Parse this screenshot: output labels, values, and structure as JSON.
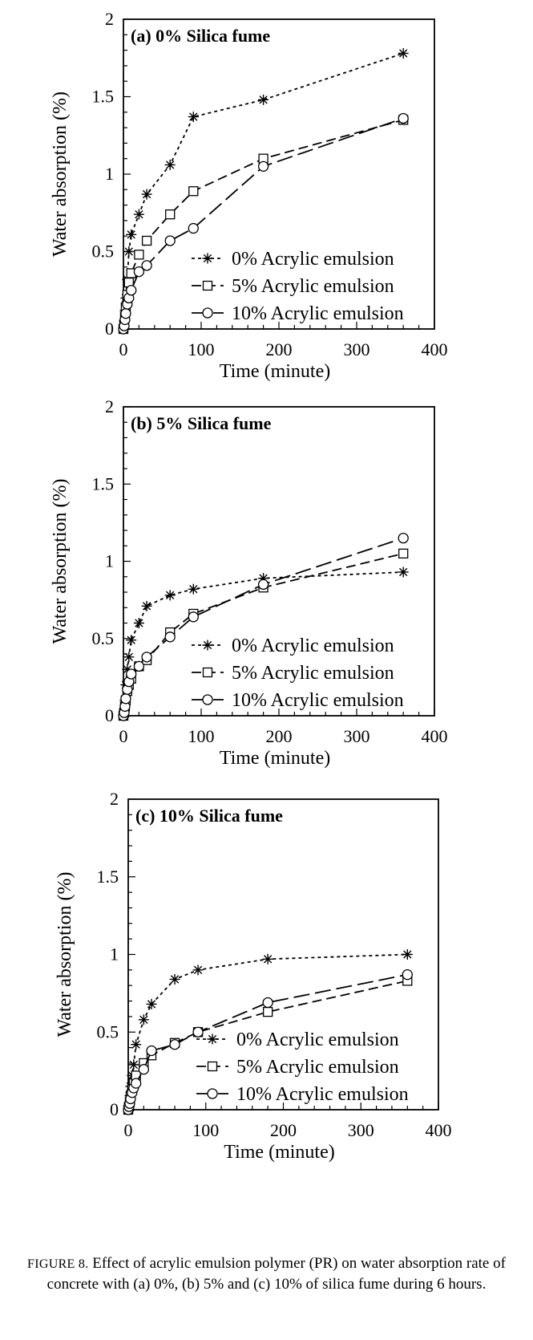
{
  "chart_data": [
    {
      "type": "line",
      "title": "(a) 0% Silica fume",
      "xlabel": "Time (minute)",
      "ylabel": "Water absorption (%)",
      "xlim": [
        0,
        400
      ],
      "ylim": [
        0,
        2
      ],
      "xticks": [
        "0",
        "100",
        "200",
        "300",
        "400"
      ],
      "yticks": [
        "0",
        "0.5",
        "1",
        "1.5",
        "2"
      ],
      "grid": false,
      "legend_position": "bottom-right",
      "series": [
        {
          "name": "0% Acrylic emulsion",
          "marker": "asterisk",
          "dash": "dotted",
          "x": [
            0,
            1,
            2,
            3,
            5,
            7,
            10,
            20,
            30,
            60,
            90,
            180,
            360
          ],
          "y": [
            0,
            0.05,
            0.12,
            0.2,
            0.32,
            0.5,
            0.61,
            0.74,
            0.87,
            1.06,
            1.37,
            1.48,
            1.78
          ]
        },
        {
          "name": "5% Acrylic emulsion",
          "marker": "square",
          "dash": "dashed",
          "x": [
            0,
            1,
            2,
            3,
            5,
            7,
            10,
            20,
            30,
            60,
            90,
            180,
            360
          ],
          "y": [
            0,
            0.03,
            0.08,
            0.14,
            0.22,
            0.3,
            0.36,
            0.48,
            0.57,
            0.74,
            0.89,
            1.1,
            1.35
          ]
        },
        {
          "name": "10% Acrylic emulsion",
          "marker": "circle",
          "dash": "longdash",
          "x": [
            0,
            1,
            2,
            3,
            5,
            7,
            10,
            20,
            30,
            60,
            90,
            180,
            360
          ],
          "y": [
            0,
            0.02,
            0.06,
            0.1,
            0.16,
            0.2,
            0.25,
            0.37,
            0.41,
            0.57,
            0.65,
            1.05,
            1.36
          ]
        }
      ]
    },
    {
      "type": "line",
      "title": "(b) 5% Silica fume",
      "xlabel": "Time (minute)",
      "ylabel": "Water absorption (%)",
      "xlim": [
        0,
        400
      ],
      "ylim": [
        0,
        2
      ],
      "xticks": [
        "0",
        "100",
        "200",
        "300",
        "400"
      ],
      "yticks": [
        "0",
        "0.5",
        "1",
        "1.5",
        "2"
      ],
      "grid": false,
      "legend_position": "bottom-right",
      "series": [
        {
          "name": "0% Acrylic emulsion",
          "marker": "asterisk",
          "dash": "dotted",
          "x": [
            0,
            1,
            2,
            3,
            5,
            7,
            10,
            20,
            30,
            60,
            90,
            180,
            360
          ],
          "y": [
            0,
            0.04,
            0.1,
            0.2,
            0.3,
            0.38,
            0.49,
            0.6,
            0.71,
            0.78,
            0.82,
            0.89,
            0.93
          ]
        },
        {
          "name": "5% Acrylic emulsion",
          "marker": "square",
          "dash": "dashed",
          "x": [
            0,
            1,
            2,
            3,
            5,
            7,
            10,
            20,
            30,
            60,
            90,
            180,
            360
          ],
          "y": [
            0,
            0.02,
            0.06,
            0.1,
            0.16,
            0.2,
            0.24,
            0.32,
            0.36,
            0.54,
            0.66,
            0.83,
            1.05
          ]
        },
        {
          "name": "10% Acrylic emulsion",
          "marker": "circle",
          "dash": "longdash",
          "x": [
            0,
            1,
            2,
            3,
            5,
            7,
            10,
            20,
            30,
            60,
            90,
            180,
            360
          ],
          "y": [
            0,
            0.02,
            0.06,
            0.11,
            0.17,
            0.22,
            0.27,
            0.32,
            0.38,
            0.51,
            0.64,
            0.85,
            1.15
          ]
        }
      ]
    },
    {
      "type": "line",
      "title": "(c) 10% Silica fume",
      "xlabel": "Time (minute)",
      "ylabel": "Water absorption (%)",
      "xlim": [
        0,
        400
      ],
      "ylim": [
        0,
        2
      ],
      "xticks": [
        "0",
        "100",
        "200",
        "300",
        "400"
      ],
      "yticks": [
        "0",
        "0.5",
        "1",
        "1.5",
        "2"
      ],
      "grid": false,
      "legend_position": "bottom-right",
      "series": [
        {
          "name": "0% Acrylic emulsion",
          "marker": "asterisk",
          "dash": "dotted",
          "x": [
            0,
            1,
            2,
            3,
            5,
            7,
            10,
            20,
            30,
            60,
            90,
            180,
            360
          ],
          "y": [
            0,
            0.04,
            0.09,
            0.15,
            0.22,
            0.29,
            0.42,
            0.58,
            0.68,
            0.84,
            0.9,
            0.97,
            1.0
          ]
        },
        {
          "name": "5% Acrylic emulsion",
          "marker": "square",
          "dash": "dashed",
          "x": [
            0,
            1,
            2,
            3,
            5,
            7,
            10,
            20,
            30,
            60,
            90,
            180,
            360
          ],
          "y": [
            0,
            0.02,
            0.05,
            0.09,
            0.13,
            0.17,
            0.22,
            0.3,
            0.35,
            0.43,
            0.5,
            0.63,
            0.83
          ]
        },
        {
          "name": "10% Acrylic emulsion",
          "marker": "circle",
          "dash": "longdash",
          "x": [
            0,
            1,
            2,
            3,
            5,
            7,
            10,
            20,
            30,
            60,
            90,
            180,
            360
          ],
          "y": [
            0,
            0.02,
            0.04,
            0.07,
            0.11,
            0.14,
            0.17,
            0.26,
            0.38,
            0.42,
            0.5,
            0.69,
            0.87
          ]
        }
      ]
    }
  ],
  "caption": {
    "lead": "FIGURE 8.",
    "text": " Effect of acrylic emulsion polymer (PR) on water absorption rate of concrete with (a) 0%, (b) 5% and (c) 10% of silica fume during 6 hours."
  }
}
